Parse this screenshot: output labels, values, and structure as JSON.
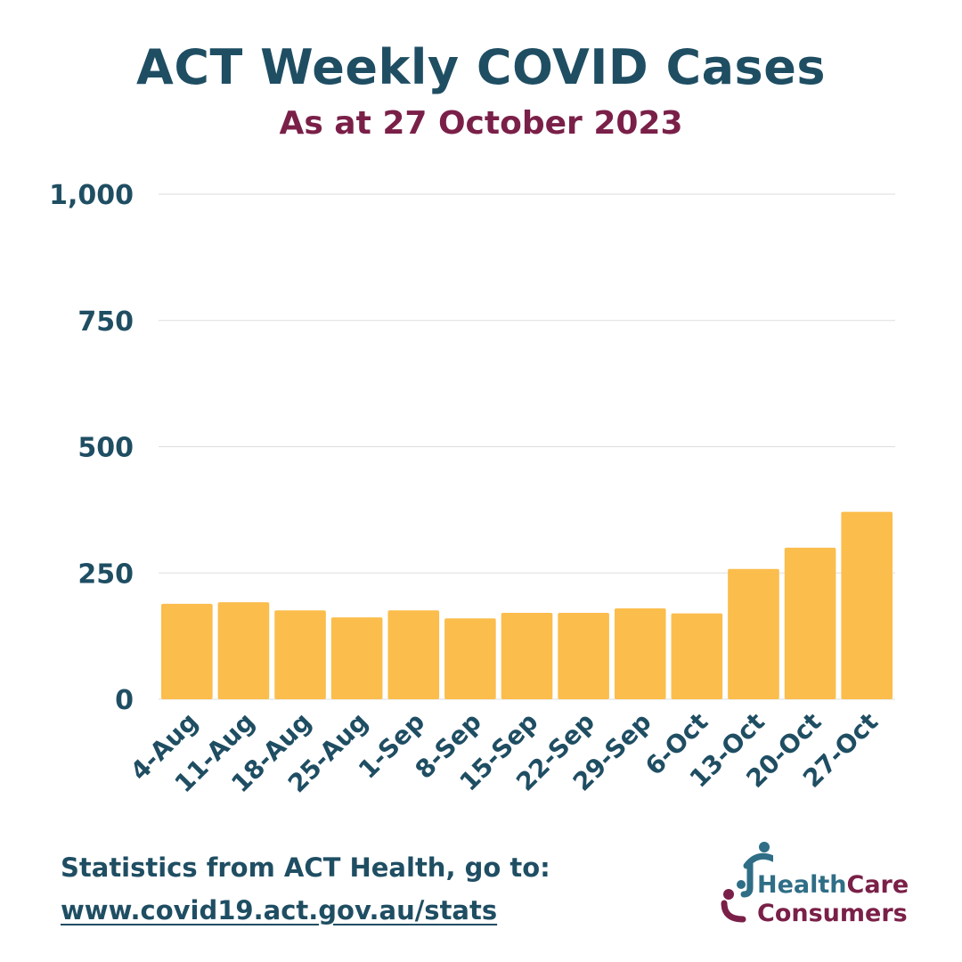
{
  "colors": {
    "title": "#1f4e63",
    "subtitle": "#7a2048",
    "bar": "#fbbd4c",
    "axis_text": "#1f4e63",
    "gridline": "#dddddd",
    "logo_blue": "#2f6e86",
    "logo_maroon": "#7a2048"
  },
  "chart_data": {
    "type": "bar",
    "title": "ACT Weekly COVID Cases",
    "subtitle": "As at 27 October 2023",
    "xlabel": "",
    "ylabel": "",
    "ylim": [
      0,
      1000
    ],
    "grid": true,
    "yticks": [
      {
        "value": 0,
        "label": "0"
      },
      {
        "value": 250,
        "label": "250"
      },
      {
        "value": 500,
        "label": "500"
      },
      {
        "value": 750,
        "label": "750"
      },
      {
        "value": 1000,
        "label": "1,000"
      }
    ],
    "categories": [
      "4-Aug",
      "11-Aug",
      "18-Aug",
      "25-Aug",
      "1-Sep",
      "8-Sep",
      "15-Sep",
      "22-Sep",
      "29-Sep",
      "6-Oct",
      "13-Oct",
      "20-Oct",
      "27-Oct"
    ],
    "values": [
      189,
      192,
      176,
      162,
      176,
      160,
      171,
      171,
      180,
      170,
      258,
      300,
      371
    ]
  },
  "footer": {
    "source_text": "Statistics from ACT Health, go to:",
    "source_link": "www.covid19.act.gov.au/stats"
  },
  "logo": {
    "word1": "Health",
    "word2": "Care",
    "word3": "Consumers"
  },
  "icons": {
    "logo_mark": "healthcare-consumers-logo-icon"
  }
}
